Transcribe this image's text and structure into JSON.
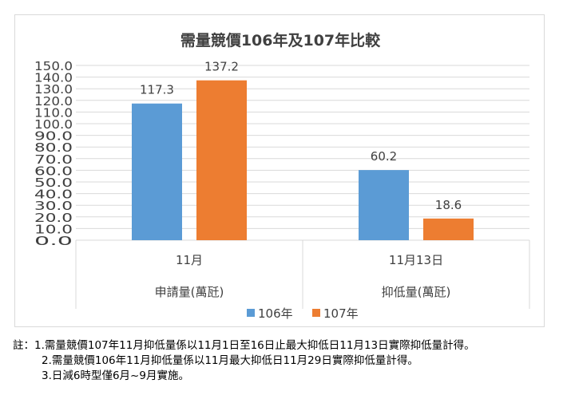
{
  "chart_data": {
    "type": "bar",
    "title": "需量競價106年及107年比較",
    "groups": [
      {
        "category": "11月",
        "group_label": "申請量(萬瓩)"
      },
      {
        "category": "11月13日",
        "group_label": "抑低量(萬瓩)"
      }
    ],
    "categories": [
      "11月",
      "11月13日"
    ],
    "series": [
      {
        "name": "106年",
        "color": "#5b9bd5",
        "values": [
          117.3,
          60.2
        ],
        "labels": [
          "117.3",
          "60.2"
        ]
      },
      {
        "name": "107年",
        "color": "#ed7d31",
        "values": [
          137.2,
          18.6
        ],
        "labels": [
          "137.2",
          "18.6"
        ]
      }
    ],
    "ylim": [
      0,
      150
    ],
    "y_ticks": [
      "0.0",
      "10.0",
      "20.0",
      "30.0",
      "40.0",
      "50.0",
      "60.0",
      "70.0",
      "80.0",
      "90.0",
      "100.0",
      "110.0",
      "120.0",
      "130.0",
      "140.0",
      "150.0"
    ],
    "grid": true,
    "legend_position": "bottom"
  },
  "notes": [
    "註：1.需量競價107年11月抑低量係以11月1日至16日止最大抑低日11月13日實際抑低量計得。",
    "2.需量競價106年11月抑低量係以11月最大抑低日11月29日實際抑低量計得。",
    "3.日減6時型僅6月~9月實施。"
  ]
}
